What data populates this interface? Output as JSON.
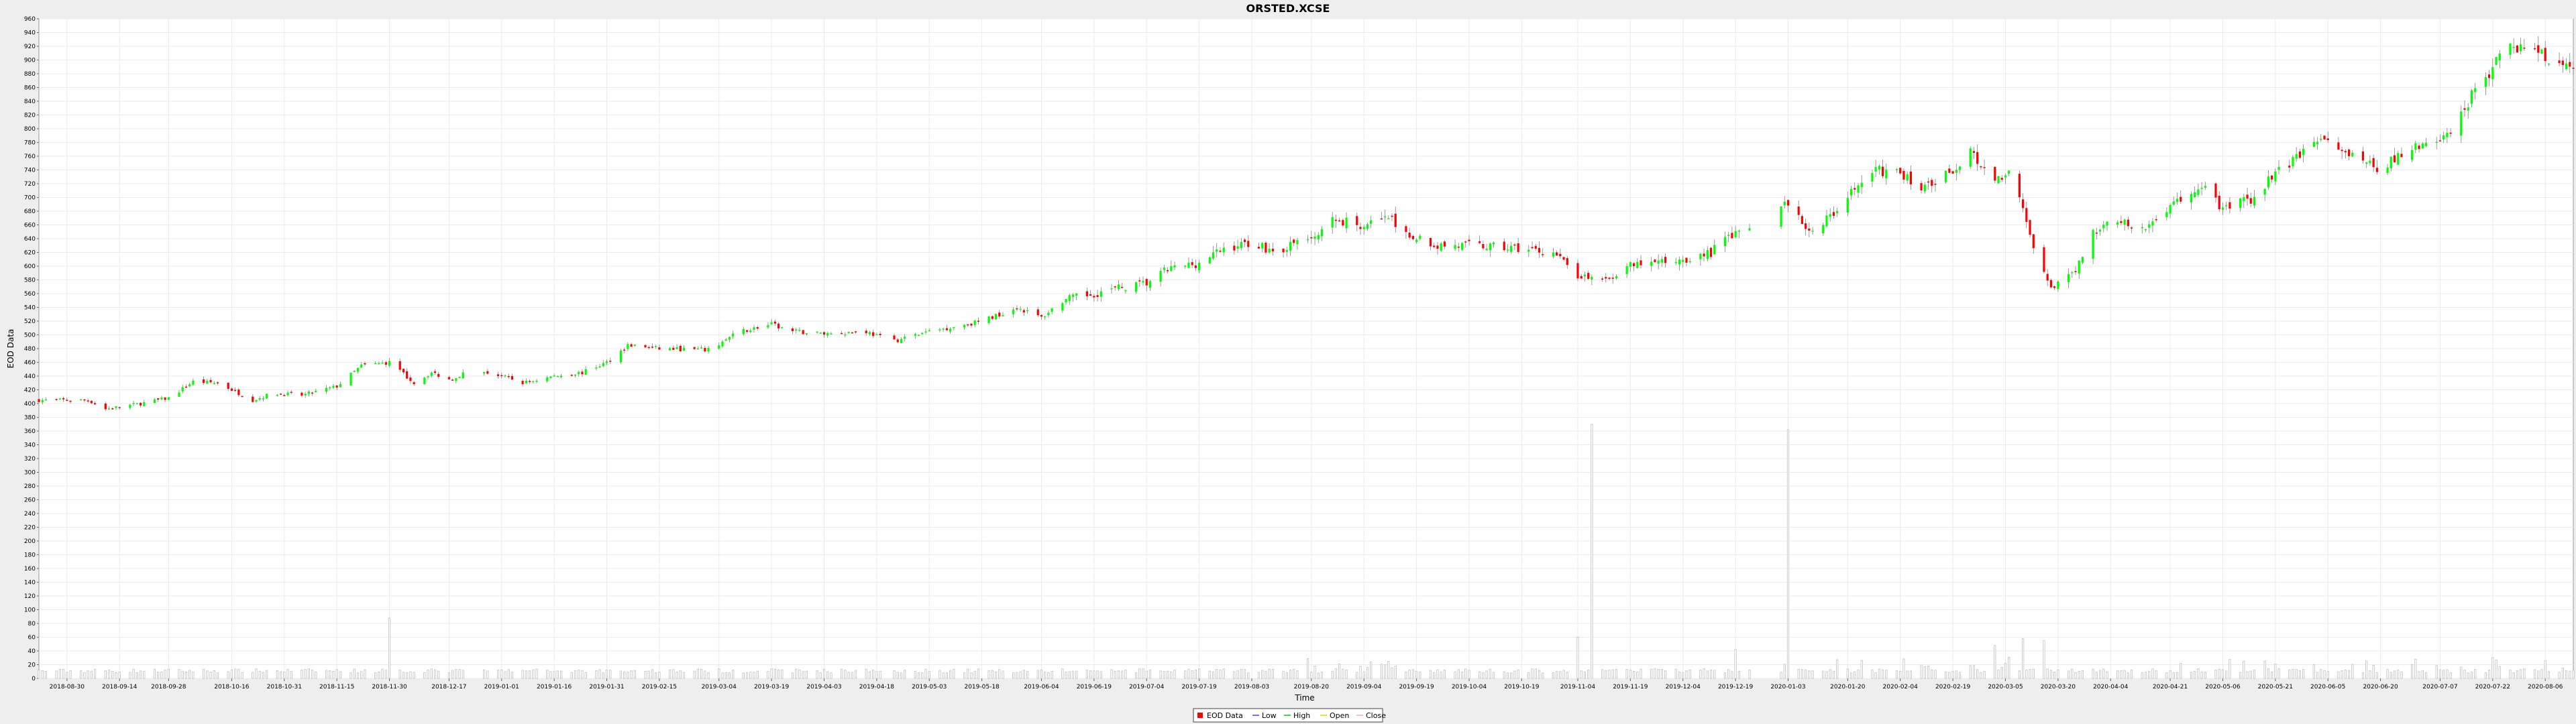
{
  "chart_data": {
    "type": "candlestick",
    "title": "ORSTED.XCSE",
    "xlabel": "Time",
    "ylabel": "EOD Data",
    "ylim": [
      0,
      960
    ],
    "yticks": [
      0,
      20,
      40,
      60,
      80,
      100,
      120,
      140,
      160,
      180,
      200,
      220,
      240,
      260,
      280,
      300,
      320,
      340,
      360,
      380,
      400,
      420,
      440,
      460,
      480,
      500,
      520,
      540,
      560,
      580,
      600,
      620,
      640,
      660,
      680,
      700,
      720,
      740,
      760,
      780,
      800,
      820,
      840,
      860,
      880,
      900,
      920,
      940,
      960
    ],
    "x_range": [
      "2018-08-22",
      "2020-08-14"
    ],
    "x_ticks": [
      "2018-08-30",
      "2018-09-14",
      "2018-09-28",
      "2018-10-16",
      "2018-10-31",
      "2018-11-15",
      "2018-11-30",
      "2018-12-17",
      "2019-01-01",
      "2019-01-16",
      "2019-01-31",
      "2019-02-15",
      "2019-03-04",
      "2019-03-19",
      "2019-04-03",
      "2019-04-18",
      "2019-05-03",
      "2019-05-18",
      "2019-06-04",
      "2019-06-19",
      "2019-07-04",
      "2019-07-19",
      "2019-08-03",
      "2019-08-20",
      "2019-09-04",
      "2019-09-19",
      "2019-10-04",
      "2019-10-19",
      "2019-11-04",
      "2019-11-19",
      "2019-12-04",
      "2019-12-19",
      "2020-01-03",
      "2020-01-20",
      "2020-02-04",
      "2020-02-19",
      "2020-03-05",
      "2020-03-20",
      "2020-04-04",
      "2020-04-21",
      "2020-05-06",
      "2020-05-21",
      "2020-06-05",
      "2020-06-20",
      "2020-07-07",
      "2020-07-22",
      "2020-08-06"
    ],
    "close_anchors": [
      [
        "2018-08-22",
        405
      ],
      [
        "2018-09-05",
        405
      ],
      [
        "2018-09-10",
        392
      ],
      [
        "2018-09-20",
        400
      ],
      [
        "2018-09-28",
        408
      ],
      [
        "2018-10-05",
        432
      ],
      [
        "2018-10-12",
        430
      ],
      [
        "2018-10-22",
        405
      ],
      [
        "2018-10-28",
        415
      ],
      [
        "2018-11-05",
        412
      ],
      [
        "2018-11-15",
        425
      ],
      [
        "2018-11-22",
        455
      ],
      [
        "2018-11-30",
        460
      ],
      [
        "2018-12-07",
        430
      ],
      [
        "2018-12-12",
        445
      ],
      [
        "2018-12-17",
        435
      ],
      [
        "2018-12-24",
        450
      ],
      [
        "2019-01-01",
        440
      ],
      [
        "2019-01-07",
        430
      ],
      [
        "2019-01-16",
        440
      ],
      [
        "2019-01-24",
        445
      ],
      [
        "2019-01-31",
        460
      ],
      [
        "2019-02-06",
        485
      ],
      [
        "2019-02-15",
        480
      ],
      [
        "2019-03-01",
        478
      ],
      [
        "2019-03-10",
        505
      ],
      [
        "2019-03-19",
        515
      ],
      [
        "2019-03-25",
        505
      ],
      [
        "2019-04-03",
        502
      ],
      [
        "2019-04-15",
        505
      ],
      [
        "2019-04-22",
        490
      ],
      [
        "2019-05-03",
        505
      ],
      [
        "2019-05-18",
        520
      ],
      [
        "2019-05-28",
        540
      ],
      [
        "2019-06-04",
        525
      ],
      [
        "2019-06-10",
        550
      ],
      [
        "2019-06-19",
        560
      ],
      [
        "2019-06-28",
        570
      ],
      [
        "2019-07-04",
        575
      ],
      [
        "2019-07-10",
        595
      ],
      [
        "2019-07-19",
        605
      ],
      [
        "2019-07-26",
        625
      ],
      [
        "2019-08-03",
        635
      ],
      [
        "2019-08-10",
        620
      ],
      [
        "2019-08-20",
        645
      ],
      [
        "2019-08-27",
        668
      ],
      [
        "2019-09-04",
        660
      ],
      [
        "2019-09-10",
        675
      ],
      [
        "2019-09-16",
        650
      ],
      [
        "2019-09-25",
        630
      ],
      [
        "2019-10-04",
        630
      ],
      [
        "2019-10-19",
        625
      ],
      [
        "2019-10-28",
        620
      ],
      [
        "2019-11-04",
        585
      ],
      [
        "2019-11-10",
        575
      ],
      [
        "2019-11-19",
        600
      ],
      [
        "2019-12-04",
        610
      ],
      [
        "2019-12-12",
        620
      ],
      [
        "2019-12-19",
        650
      ],
      [
        "2019-12-30",
        680
      ],
      [
        "2020-01-03",
        690
      ],
      [
        "2020-01-10",
        650
      ],
      [
        "2020-01-20",
        700
      ],
      [
        "2020-01-28",
        740
      ],
      [
        "2020-02-04",
        735
      ],
      [
        "2020-02-10",
        715
      ],
      [
        "2020-02-19",
        740
      ],
      [
        "2020-02-24",
        770
      ],
      [
        "2020-03-02",
        720
      ],
      [
        "2020-03-07",
        750
      ],
      [
        "2020-03-13",
        620
      ],
      [
        "2020-03-18",
        570
      ],
      [
        "2020-03-24",
        585
      ],
      [
        "2020-03-30",
        650
      ],
      [
        "2020-04-06",
        670
      ],
      [
        "2020-04-12",
        645
      ],
      [
        "2020-04-21",
        690
      ],
      [
        "2020-05-01",
        715
      ],
      [
        "2020-05-06",
        680
      ],
      [
        "2020-05-15",
        700
      ],
      [
        "2020-05-21",
        735
      ],
      [
        "2020-05-28",
        760
      ],
      [
        "2020-06-05",
        785
      ],
      [
        "2020-06-12",
        765
      ],
      [
        "2020-06-20",
        740
      ],
      [
        "2020-06-28",
        770
      ],
      [
        "2020-07-07",
        780
      ],
      [
        "2020-07-12",
        810
      ],
      [
        "2020-07-16",
        850
      ],
      [
        "2020-07-22",
        890
      ],
      [
        "2020-07-28",
        920
      ],
      [
        "2020-08-06",
        905
      ],
      [
        "2020-08-14",
        890
      ]
    ],
    "gaps": [
      [
        "2018-12-24",
        "2018-12-26"
      ],
      [
        "2019-04-20",
        "2019-04-22"
      ],
      [
        "2019-12-24",
        "2019-12-31"
      ]
    ],
    "volume_base": 8,
    "volume_spikes": [
      [
        "2018-11-30",
        88
      ],
      [
        "2019-11-04",
        60
      ],
      [
        "2019-11-08",
        370
      ],
      [
        "2019-12-19",
        42
      ],
      [
        "2020-01-03",
        362
      ],
      [
        "2020-03-02",
        48
      ],
      [
        "2020-03-10",
        58
      ],
      [
        "2020-03-16",
        55
      ]
    ],
    "legend": {
      "position": "bottom-center",
      "items": [
        {
          "label": "EOD Data",
          "swatch": "#ff0000",
          "kind": "box"
        },
        {
          "label": "Low",
          "swatch": "#4444ff",
          "kind": "line"
        },
        {
          "label": "High",
          "swatch": "#00cc00",
          "kind": "line"
        },
        {
          "label": "Open",
          "swatch": "#dddd00",
          "kind": "line"
        },
        {
          "label": "Close",
          "swatch": "#ffaaaa",
          "kind": "line"
        }
      ]
    },
    "colors": {
      "up": "#00ff00",
      "down": "#ff0000",
      "wick": "#808080",
      "volume": "#c0c0c0",
      "background": "#ffffff",
      "page": "#eeeeee",
      "grid": "#ebebeb"
    },
    "grid": true
  }
}
